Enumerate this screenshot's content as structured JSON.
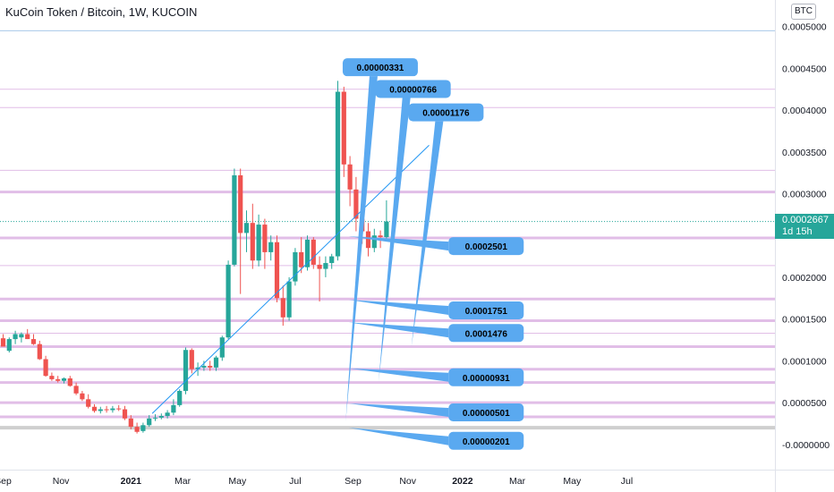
{
  "header": {
    "title": "KuCoin Token / Bitcoin, 1W, KUCOIN",
    "currency_badge": "BTC"
  },
  "last_price": {
    "value": "0.0002667",
    "countdown": "1d 15h"
  },
  "colors": {
    "up": "#26a69a",
    "down": "#ef5350",
    "level_line": "#e1bee7",
    "callout": "#5aa9f0",
    "trendline": "#2196f3"
  },
  "chart_data": {
    "type": "candlestick",
    "title": "KuCoin Token / Bitcoin, 1W, KUCOIN",
    "y_unit": "BTC",
    "ylim": [
      -8.8e-06,
      0.000505
    ],
    "y_ticks": [
      {
        "v": 0.0005,
        "label": "0.0005000"
      },
      {
        "v": 0.00045,
        "label": "0.0004500"
      },
      {
        "v": 0.0004,
        "label": "0.0004000"
      },
      {
        "v": 0.00035,
        "label": "0.0003500"
      },
      {
        "v": 0.0003,
        "label": "0.0003000"
      },
      {
        "v": 0.0002,
        "label": "0.0002000"
      },
      {
        "v": 0.00015,
        "label": "0.0001500"
      },
      {
        "v": 0.0001,
        "label": "0.0001000"
      },
      {
        "v": 5e-05,
        "label": "0.0000500"
      },
      {
        "v": 0.0,
        "label": "-0.0000000"
      }
    ],
    "x_ticks": [
      {
        "week": 0,
        "label": "Sep",
        "bold": false
      },
      {
        "week": 9.5,
        "label": "Nov",
        "bold": false
      },
      {
        "week": 21,
        "label": "2021",
        "bold": true
      },
      {
        "week": 29.5,
        "label": "Mar",
        "bold": false
      },
      {
        "week": 38.5,
        "label": "May",
        "bold": false
      },
      {
        "week": 48,
        "label": "Jul",
        "bold": false
      },
      {
        "week": 57.5,
        "label": "Sep",
        "bold": false
      },
      {
        "week": 66.5,
        "label": "Nov",
        "bold": false
      },
      {
        "week": 75.5,
        "label": "2022",
        "bold": true
      },
      {
        "week": 84.5,
        "label": "Mar",
        "bold": false
      },
      {
        "week": 93.5,
        "label": "May",
        "bold": false
      },
      {
        "week": 102.5,
        "label": "Jul",
        "bold": false
      }
    ],
    "candles": [
      {
        "o": 0.000127,
        "h": 0.000132,
        "l": 0.000117,
        "c": 0.000117
      },
      {
        "o": 0.000112,
        "h": 0.000128,
        "l": 0.00011,
        "c": 0.000126
      },
      {
        "o": 0.000126,
        "h": 0.000136,
        "l": 0.00012,
        "c": 0.000132
      },
      {
        "o": 0.000128,
        "h": 0.000134,
        "l": 0.000122,
        "c": 0.000132
      },
      {
        "o": 0.000132,
        "h": 0.000138,
        "l": 0.000126,
        "c": 0.000126
      },
      {
        "o": 0.000126,
        "h": 0.000132,
        "l": 0.000119,
        "c": 0.00012
      },
      {
        "o": 0.00012,
        "h": 0.000124,
        "l": 0.000101,
        "c": 0.000102
      },
      {
        "o": 0.000102,
        "h": 0.000106,
        "l": 8.1e-05,
        "c": 8.2e-05
      },
      {
        "o": 8.2e-05,
        "h": 8.6e-05,
        "l": 7.6e-05,
        "c": 7.8e-05
      },
      {
        "o": 7.8e-05,
        "h": 8.2e-05,
        "l": 7.4e-05,
        "c": 7.6e-05
      },
      {
        "o": 7.6e-05,
        "h": 8e-05,
        "l": 7.3e-05,
        "c": 7.9e-05
      },
      {
        "o": 7.9e-05,
        "h": 8.2e-05,
        "l": 6.9e-05,
        "c": 7e-05
      },
      {
        "o": 7e-05,
        "h": 7.4e-05,
        "l": 5.9e-05,
        "c": 6.1e-05
      },
      {
        "o": 6.1e-05,
        "h": 6.4e-05,
        "l": 5.2e-05,
        "c": 5.4e-05
      },
      {
        "o": 5.4e-05,
        "h": 6e-05,
        "l": 4.3e-05,
        "c": 4.5e-05
      },
      {
        "o": 4.5e-05,
        "h": 4.8e-05,
        "l": 3.8e-05,
        "c": 4e-05
      },
      {
        "o": 4e-05,
        "h": 4.5e-05,
        "l": 3.7e-05,
        "c": 4.2e-05
      },
      {
        "o": 4.2e-05,
        "h": 4.6e-05,
        "l": 3.8e-05,
        "c": 4.1e-05
      },
      {
        "o": 4.1e-05,
        "h": 4.6e-05,
        "l": 3.8e-05,
        "c": 4.3e-05
      },
      {
        "o": 4.3e-05,
        "h": 4.7e-05,
        "l": 4e-05,
        "c": 4.2e-05
      },
      {
        "o": 4.2e-05,
        "h": 4.6e-05,
        "l": 2.9e-05,
        "c": 3.1e-05
      },
      {
        "o": 3.1e-05,
        "h": 3.5e-05,
        "l": 1.8e-05,
        "c": 2.1e-05
      },
      {
        "o": 2.1e-05,
        "h": 2.6e-05,
        "l": 1.3e-05,
        "c": 1.5e-05
      },
      {
        "o": 1.6e-05,
        "h": 2.6e-05,
        "l": 1.4e-05,
        "c": 2.3e-05
      },
      {
        "o": 2.3e-05,
        "h": 3.5e-05,
        "l": 2.1e-05,
        "c": 3.1e-05
      },
      {
        "o": 3.1e-05,
        "h": 3.6e-05,
        "l": 2.8e-05,
        "c": 3.2e-05
      },
      {
        "o": 3.2e-05,
        "h": 3.7e-05,
        "l": 3e-05,
        "c": 3.4e-05
      },
      {
        "o": 3.4e-05,
        "h": 4.1e-05,
        "l": 3.1e-05,
        "c": 3.8e-05
      },
      {
        "o": 3.8e-05,
        "h": 5.4e-05,
        "l": 3.5e-05,
        "c": 4.7e-05
      },
      {
        "o": 4.7e-05,
        "h": 6.6e-05,
        "l": 4.5e-05,
        "c": 6.4e-05
      },
      {
        "o": 6.4e-05,
        "h": 0.000116,
        "l": 6e-05,
        "c": 0.000113
      },
      {
        "o": 0.000113,
        "h": 0.000115,
        "l": 8.5e-05,
        "c": 9e-05
      },
      {
        "o": 9e-05,
        "h": 9.8e-05,
        "l": 8.2e-05,
        "c": 9.2e-05
      },
      {
        "o": 9.2e-05,
        "h": 0.0001,
        "l": 8.8e-05,
        "c": 9.4e-05
      },
      {
        "o": 9.4e-05,
        "h": 0.0001,
        "l": 8.8e-05,
        "c": 9.2e-05
      },
      {
        "o": 9.2e-05,
        "h": 0.000106,
        "l": 8.8e-05,
        "c": 0.000104
      },
      {
        "o": 0.000104,
        "h": 0.00013,
        "l": 0.0001,
        "c": 0.000128
      },
      {
        "o": 0.000128,
        "h": 0.00022,
        "l": 0.000126,
        "c": 0.000215
      },
      {
        "o": 0.000215,
        "h": 0.00033,
        "l": 0.000213,
        "c": 0.000322
      },
      {
        "o": 0.000322,
        "h": 0.00033,
        "l": 0.00018,
        "c": 0.000253
      },
      {
        "o": 0.000253,
        "h": 0.00028,
        "l": 0.00023,
        "c": 0.000265
      },
      {
        "o": 0.000265,
        "h": 0.000288,
        "l": 0.00021,
        "c": 0.00022
      },
      {
        "o": 0.00022,
        "h": 0.000275,
        "l": 0.000213,
        "c": 0.000263
      },
      {
        "o": 0.000263,
        "h": 0.00027,
        "l": 0.00021,
        "c": 0.00023
      },
      {
        "o": 0.00023,
        "h": 0.00025,
        "l": 0.00022,
        "c": 0.000242
      },
      {
        "o": 0.000242,
        "h": 0.00025,
        "l": 0.00017,
        "c": 0.000175
      },
      {
        "o": 0.000175,
        "h": 0.00019,
        "l": 0.000142,
        "c": 0.000152
      },
      {
        "o": 0.000152,
        "h": 0.0002,
        "l": 0.000148,
        "c": 0.000195
      },
      {
        "o": 0.000195,
        "h": 0.000235,
        "l": 0.00019,
        "c": 0.00023
      },
      {
        "o": 0.00023,
        "h": 0.000248,
        "l": 0.000205,
        "c": 0.000212
      },
      {
        "o": 0.000212,
        "h": 0.00025,
        "l": 0.000208,
        "c": 0.000245
      },
      {
        "o": 0.000245,
        "h": 0.000248,
        "l": 0.00021,
        "c": 0.000215
      },
      {
        "o": 0.000215,
        "h": 0.000225,
        "l": 0.000171,
        "c": 0.00021
      },
      {
        "o": 0.00021,
        "h": 0.000225,
        "l": 0.0002,
        "c": 0.000217
      },
      {
        "o": 0.000217,
        "h": 0.000228,
        "l": 0.00021,
        "c": 0.000225
      },
      {
        "o": 0.000225,
        "h": 0.000435,
        "l": 0.00022,
        "c": 0.000422
      },
      {
        "o": 0.000422,
        "h": 0.000428,
        "l": 0.00032,
        "c": 0.000335
      },
      {
        "o": 0.000335,
        "h": 0.000345,
        "l": 0.000285,
        "c": 0.000305
      },
      {
        "o": 0.000305,
        "h": 0.00032,
        "l": 0.000255,
        "c": 0.00027
      },
      {
        "o": 0.00027,
        "h": 0.00028,
        "l": 0.00024,
        "c": 0.000255
      },
      {
        "o": 0.000255,
        "h": 0.000265,
        "l": 0.000225,
        "c": 0.000235
      },
      {
        "o": 0.000235,
        "h": 0.000258,
        "l": 0.00023,
        "c": 0.00025
      },
      {
        "o": 0.00025,
        "h": 0.000256,
        "l": 0.000235,
        "c": 0.000248
      },
      {
        "o": 0.000248,
        "h": 0.000292,
        "l": 0.000246,
        "c": 0.0002667
      }
    ],
    "levels": [
      {
        "v": 0.000495,
        "color": "#a8c8e8",
        "w": 1
      },
      {
        "v": 0.000425,
        "color": "#e1bee7",
        "w": 1
      },
      {
        "v": 0.000403,
        "color": "#e1bee7",
        "w": 1
      },
      {
        "v": 0.000328,
        "color": "#e1bee7",
        "w": 1
      },
      {
        "v": 0.000302,
        "color": "#e1bee7",
        "w": 3
      },
      {
        "v": 0.000247,
        "color": "#e1bee7",
        "w": 3
      },
      {
        "v": 0.000214,
        "color": "#e1bee7",
        "w": 1
      },
      {
        "v": 0.000174,
        "color": "#e1bee7",
        "w": 3
      },
      {
        "v": 0.000148,
        "color": "#e1bee7",
        "w": 3
      },
      {
        "v": 0.000133,
        "color": "#e1bee7",
        "w": 1
      },
      {
        "v": 0.000117,
        "color": "#e1bee7",
        "w": 3
      },
      {
        "v": 9e-05,
        "color": "#e1bee7",
        "w": 3
      },
      {
        "v": 7.4e-05,
        "color": "#e1bee7",
        "w": 3
      },
      {
        "v": 5e-05,
        "color": "#e1bee7",
        "w": 3
      },
      {
        "v": 3.3e-05,
        "color": "#e1bee7",
        "w": 3
      },
      {
        "v": 2e-05,
        "color": "#cfcfcf",
        "w": 4
      }
    ],
    "current_price_line": 0.0002667,
    "trendline": {
      "from": {
        "week": 24.5,
        "v": 3.7e-05
      },
      "to": {
        "week": 70,
        "v": 0.000358
      }
    },
    "callouts": [
      {
        "label": "0.00000331",
        "box": {
          "week": 55.8,
          "v": 0.000462
        },
        "tip": {
          "week": 56.3,
          "v": 2.8e-05
        }
      },
      {
        "label": "0.00000766",
        "box": {
          "week": 61.2,
          "v": 0.000436
        },
        "tip": {
          "week": 61.7,
          "v": 7.5e-05
        }
      },
      {
        "label": "0.00001176",
        "box": {
          "week": 66.6,
          "v": 0.000408
        },
        "tip": {
          "week": 67.1,
          "v": 0.000117
        }
      },
      {
        "label": "0.0002501",
        "box": {
          "week": 73.2,
          "v": 0.000248
        },
        "tip": {
          "week": 56.8,
          "v": 0.000249
        }
      },
      {
        "label": "0.0001751",
        "box": {
          "week": 73.2,
          "v": 0.000171
        },
        "tip": {
          "week": 56.8,
          "v": 0.000173
        }
      },
      {
        "label": "0.0001476",
        "box": {
          "week": 73.2,
          "v": 0.000144
        },
        "tip": {
          "week": 56.8,
          "v": 0.000146
        }
      },
      {
        "label": "0.00000931",
        "box": {
          "week": 73.2,
          "v": 9.1e-05
        },
        "tip": {
          "week": 56.8,
          "v": 9.1e-05
        }
      },
      {
        "label": "0.00000501",
        "box": {
          "week": 73.2,
          "v": 4.9e-05
        },
        "tip": {
          "week": 56.8,
          "v": 4.9e-05
        }
      },
      {
        "label": "0.00000201",
        "box": {
          "week": 73.2,
          "v": 1.5e-05
        },
        "tip": {
          "week": 56.8,
          "v": 2e-05
        }
      }
    ]
  }
}
